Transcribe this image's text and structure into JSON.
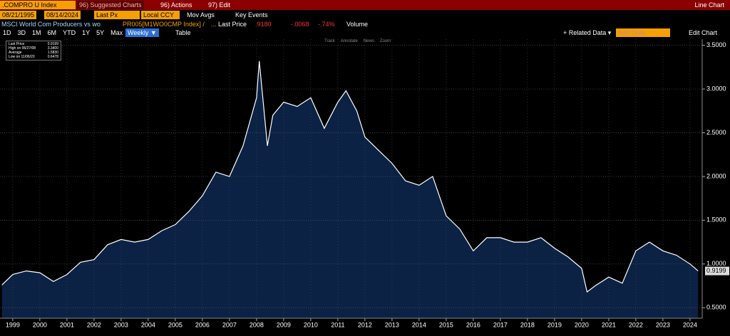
{
  "header": {
    "ticker": ".COMPRO U Index",
    "suggested": "96) Suggested Charts",
    "actions": "96) Actions",
    "edit": "97) Edit",
    "view": "Line Chart"
  },
  "controls": {
    "start": "08/21/1995",
    "end": "08/14/2024",
    "field": "Last Px",
    "currency": "Local CCY",
    "mov_avgs": "Mov Avgs",
    "key_events": "Key Events"
  },
  "security": {
    "name": "MSCI World Com Producers vs wo",
    "formula": "PR005[M1WO0CMP Index] /",
    "more": "...",
    "price_label": "Last Price",
    "price": ".9180",
    "change": "-.0068",
    "pct_change": "-.74%",
    "volume": "Volume"
  },
  "periods": [
    "1D",
    "3D",
    "1M",
    "6M",
    "YTD",
    "1Y",
    "5Y",
    "Max"
  ],
  "frequency": "Weekly ▼",
  "table": "Table",
  "related": "+ Related Data ▾",
  "add_data": "Add Data",
  "edit_chart": "Edit Chart",
  "tools": [
    "Track",
    "Annotate",
    "News",
    "Zoom"
  ],
  "legend": [
    {
      "label": "Last Price",
      "value": "0.9199"
    },
    {
      "label": "High on 06/27/08",
      "value": "3.3400"
    },
    {
      "label": "Average",
      "value": "1.5830"
    },
    {
      "label": "Low on 11/06/20",
      "value": "0.6478"
    }
  ],
  "chart_data": {
    "type": "area",
    "last_value_label": "0.9199",
    "series": [
      {
        "name": "Last Price",
        "color": "#ffffff",
        "fill": "#0b2244",
        "x": [
          1998.6,
          1999.0,
          1999.5,
          2000.0,
          2000.5,
          2001.0,
          2001.5,
          2002.0,
          2002.5,
          2003.0,
          2003.5,
          2004.0,
          2004.5,
          2005.0,
          2005.5,
          2006.0,
          2006.5,
          2007.0,
          2007.5,
          2008.0,
          2008.1,
          2008.4,
          2008.6,
          2009.0,
          2009.5,
          2010.0,
          2010.5,
          2011.0,
          2011.3,
          2011.7,
          2012.0,
          2012.5,
          2013.0,
          2013.5,
          2014.0,
          2014.5,
          2015.0,
          2015.5,
          2016.0,
          2016.5,
          2017.0,
          2017.5,
          2018.0,
          2018.5,
          2019.0,
          2019.5,
          2020.0,
          2020.2,
          2020.5,
          2021.0,
          2021.5,
          2022.0,
          2022.5,
          2023.0,
          2023.5,
          2024.0,
          2024.3
        ],
        "values": [
          0.76,
          0.88,
          0.92,
          0.9,
          0.8,
          0.88,
          1.02,
          1.05,
          1.22,
          1.28,
          1.25,
          1.28,
          1.38,
          1.45,
          1.6,
          1.78,
          2.05,
          2.0,
          2.35,
          2.9,
          3.32,
          2.35,
          2.7,
          2.85,
          2.8,
          2.9,
          2.55,
          2.85,
          2.98,
          2.75,
          2.45,
          2.3,
          2.15,
          1.95,
          1.9,
          2.0,
          1.55,
          1.4,
          1.15,
          1.3,
          1.3,
          1.25,
          1.25,
          1.3,
          1.18,
          1.08,
          0.95,
          0.68,
          0.75,
          0.85,
          0.78,
          1.15,
          1.25,
          1.15,
          1.1,
          1.0,
          0.92
        ]
      }
    ],
    "xlim": [
      1998.53,
      2024.45
    ],
    "xticks": [
      1999,
      2000,
      2001,
      2002,
      2003,
      2004,
      2005,
      2006,
      2007,
      2008,
      2009,
      2010,
      2011,
      2012,
      2013,
      2014,
      2015,
      2016,
      2017,
      2018,
      2019,
      2020,
      2021,
      2022,
      2023,
      2024
    ],
    "ylim": [
      0.38,
      3.57
    ],
    "yticks": [
      {
        "value": 0.5,
        "label": "0.5000"
      },
      {
        "value": 1.0,
        "label": "1.0000"
      },
      {
        "value": 1.5,
        "label": "1.5000"
      },
      {
        "value": 2.0,
        "label": "2.0000"
      },
      {
        "value": 2.5,
        "label": "2.5000"
      },
      {
        "value": 3.0,
        "label": "3.0000"
      },
      {
        "value": 3.5,
        "label": "3.5000"
      }
    ],
    "grid": true
  }
}
